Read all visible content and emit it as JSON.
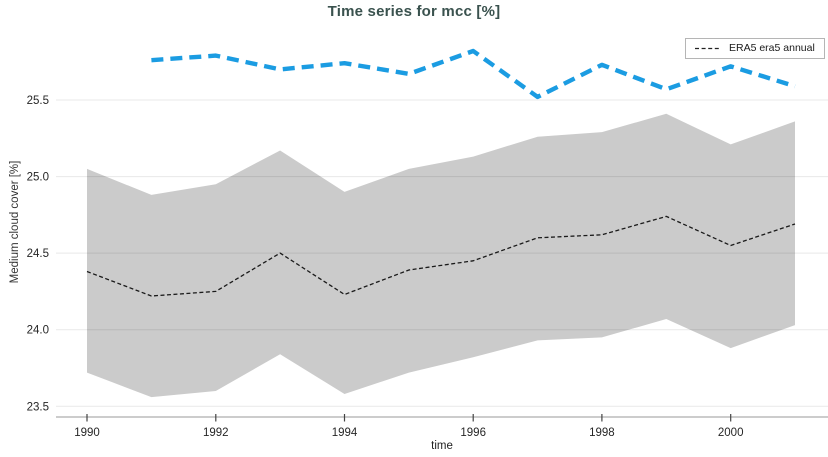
{
  "title": "Time series for mcc [%]",
  "legend": {
    "position": "top-right",
    "items": [
      {
        "label": "ERA5 era5 annual",
        "marker": "black-dashed-line"
      }
    ]
  },
  "colors": {
    "title": "#3a524e",
    "band_fill": "#cbcbcb",
    "gridline": "rgba(0,0,0,0.09)",
    "spine": "#9a9a9a",
    "tick": "#444444",
    "tick_text": "#262626"
  },
  "chart_data": {
    "type": "line",
    "title": "Time series for mcc [%]",
    "xlabel": "time",
    "ylabel": "Medium cloud cover [%]",
    "xlim": [
      1989.58,
      2001.45
    ],
    "ylim": [
      23.43,
      25.97
    ],
    "x_ticks": [
      1990,
      1992,
      1994,
      1996,
      1998,
      2000
    ],
    "x_tick_labels": [
      "1990",
      "1992",
      "1994",
      "1996",
      "1998",
      "2000"
    ],
    "y_ticks": [
      23.5,
      24.0,
      24.5,
      25.0,
      25.5
    ],
    "y_tick_labels": [
      "23.5",
      "24.0",
      "24.5",
      "25.0",
      "25.5"
    ],
    "grid": "horizontal-only",
    "legend_position": "top-right",
    "series": [
      {
        "legend_label": null,
        "visual": "thick blue dashed line, no legend entry",
        "color": "#1b9ce2",
        "x": [
          1991,
          1992,
          1993,
          1994,
          1995,
          1996,
          1997,
          1998,
          1999,
          2000,
          2001
        ],
        "y": [
          25.76,
          25.79,
          25.7,
          25.74,
          25.67,
          25.82,
          25.52,
          25.73,
          25.57,
          25.72,
          25.59
        ]
      },
      {
        "legend_label": "ERA5 era5 annual",
        "visual": "thin black dashed line centered in gray uncertainty band",
        "color": "#1a1a1a",
        "x": [
          1990,
          1991,
          1992,
          1993,
          1994,
          1995,
          1996,
          1997,
          1998,
          1999,
          2000,
          2001
        ],
        "y": [
          24.38,
          24.22,
          24.25,
          24.5,
          24.23,
          24.39,
          24.45,
          24.6,
          24.62,
          24.74,
          24.55,
          24.69
        ]
      }
    ],
    "band": {
      "series": "ERA5 era5 annual",
      "fill": "#cbcbcb",
      "x": [
        1990,
        1991,
        1992,
        1993,
        1994,
        1995,
        1996,
        1997,
        1998,
        1999,
        2000,
        2001
      ],
      "upper": [
        25.05,
        24.88,
        24.95,
        25.17,
        24.9,
        25.05,
        25.13,
        25.26,
        25.29,
        25.41,
        25.21,
        25.36
      ],
      "lower": [
        23.72,
        23.56,
        23.6,
        23.84,
        23.58,
        23.72,
        23.82,
        23.93,
        23.95,
        24.07,
        23.88,
        24.03
      ]
    }
  }
}
